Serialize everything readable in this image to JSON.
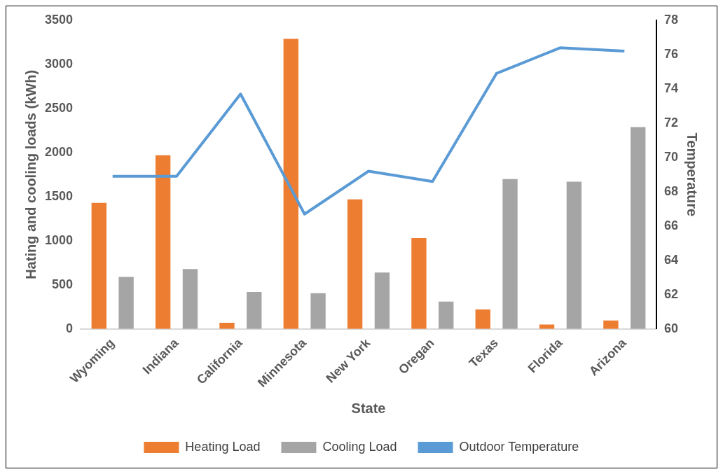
{
  "chart_data": {
    "type": "bar",
    "xlabel": "State",
    "ylabel": "Hating and cooling loads (kWh)",
    "y2label": "Temperature",
    "categories": [
      "Wyoming",
      "Indiana",
      "California",
      "Minnesota",
      "New York",
      "Oregan",
      "Texas",
      "Florida",
      "Arizona"
    ],
    "series": [
      {
        "name": "Heating Load",
        "color": "#ed7d31",
        "values": [
          1430,
          1970,
          70,
          3290,
          1470,
          1030,
          220,
          50,
          95
        ]
      },
      {
        "name": "Cooling Load",
        "color": "#a5a5a5",
        "values": [
          590,
          680,
          420,
          405,
          640,
          310,
          1700,
          1670,
          2290
        ]
      },
      {
        "name": "Outdoor Temperature",
        "type": "line",
        "axis": "y2",
        "color": "#5b9bd5",
        "values": [
          68.9,
          68.9,
          73.7,
          66.7,
          69.2,
          68.6,
          74.9,
          76.4,
          76.2
        ]
      }
    ],
    "ylim": [
      0,
      3500
    ],
    "yticks": [
      0,
      500,
      1000,
      1500,
      2000,
      2500,
      3000,
      3500
    ],
    "y2lim": [
      60,
      78
    ],
    "y2ticks": [
      60,
      62,
      64,
      66,
      68,
      70,
      72,
      74,
      76,
      78
    ],
    "grid": false,
    "legend": "bottom",
    "marker": "none",
    "line_style": "solid"
  }
}
